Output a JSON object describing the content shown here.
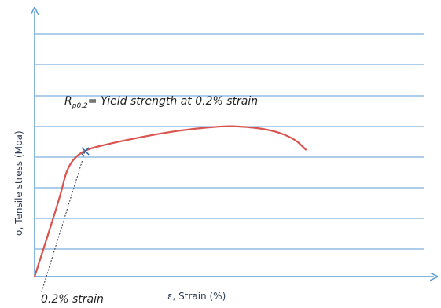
{
  "chart_data": {
    "type": "line",
    "xlabel": "ε, Strain (%)",
    "ylabel": "σ, Tensile stress (Mpa)",
    "grid": true,
    "axis_color": "#5b9bd5",
    "grid_color": "#5b9bd5",
    "curve_color": "#d9534f",
    "marker_color": "#2e6da4",
    "annotations": {
      "yield_symbol": "R",
      "yield_subscript": "p0.2",
      "yield_text": "= Yield strength at 0.2% strain",
      "offset_label": "0.2% strain",
      "yield_marker": "×"
    },
    "series": [
      {
        "points": [
          [
            0.0,
            0.0
          ],
          [
            0.06,
            0.35
          ],
          [
            0.11,
            0.65
          ],
          [
            0.14,
            0.88
          ],
          [
            0.2,
            1.0
          ],
          [
            0.3,
            1.05
          ],
          [
            0.45,
            1.11
          ],
          [
            0.6,
            1.16
          ],
          [
            0.75,
            1.19
          ],
          [
            0.85,
            1.2
          ],
          [
            1.0,
            1.17
          ],
          [
            1.1,
            1.1
          ],
          [
            1.15,
            1.01
          ]
        ]
      }
    ],
    "offset_line": [
      [
        0.03,
        -0.12
      ],
      [
        0.215,
        1.0
      ]
    ],
    "yield_point": [
      0.215,
      1.0
    ]
  }
}
